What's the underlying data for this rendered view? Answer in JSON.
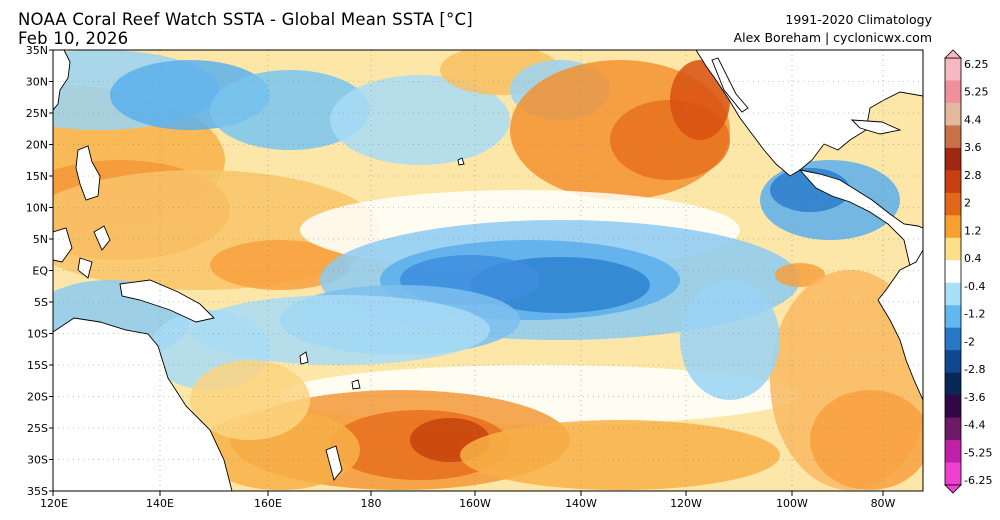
{
  "header": {
    "title_line1": "NOAA Coral Reef Watch SSTA - Global Mean SSTA [°C]",
    "title_line2": "Feb 10, 2026",
    "climatology": "1991-2020 Climatology",
    "credit": "Alex Boreham | cyclonicwx.com"
  },
  "map": {
    "lat_labels": [
      "35N",
      "30N",
      "25N",
      "20N",
      "15N",
      "10N",
      "5N",
      "EQ",
      "5S",
      "10S",
      "15S",
      "20S",
      "25S",
      "30S",
      "35S"
    ],
    "lon_labels": [
      "120E",
      "140E",
      "160E",
      "180",
      "160W",
      "140W",
      "120W",
      "100W",
      "80W"
    ],
    "land_color": "#ffffff",
    "coastline_color": "#000000"
  },
  "colorbar": {
    "labels": [
      "6.25",
      "5.25",
      "4.4",
      "3.6",
      "2.8",
      "2",
      "1.2",
      "0.4",
      "-0.4",
      "-1.2",
      "-2",
      "-2.8",
      "-3.6",
      "-4.4",
      "-5.25",
      "-6.25"
    ],
    "colors": [
      "#f7b8c2",
      "#f0909a",
      "#e4b89c",
      "#c87048",
      "#a02810",
      "#c84010",
      "#e06818",
      "#f8a030",
      "#fce088",
      "#ffffff",
      "#a8e0f8",
      "#60b8f0",
      "#2878c8",
      "#104890",
      "#082858",
      "#300848",
      "#701868",
      "#c020a8",
      "#f040d0"
    ]
  }
}
